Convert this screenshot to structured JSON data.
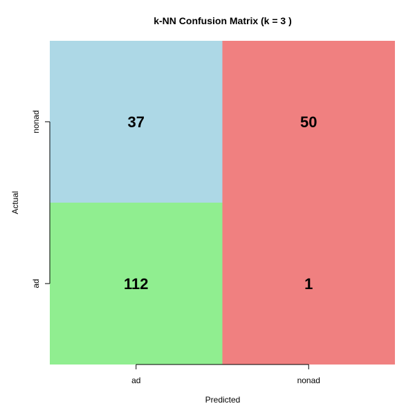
{
  "chart_data": {
    "type": "heatmap",
    "title": "k-NN Confusion Matrix (k = 3 )",
    "xlabel": "Predicted",
    "ylabel": "Actual",
    "x_categories": [
      "ad",
      "nonad"
    ],
    "y_categories": [
      "ad",
      "nonad"
    ],
    "cells": [
      {
        "actual": "nonad",
        "predicted": "ad",
        "value": 37,
        "color": "#add8e6"
      },
      {
        "actual": "nonad",
        "predicted": "nonad",
        "value": 50,
        "color": "#f08080"
      },
      {
        "actual": "ad",
        "predicted": "ad",
        "value": 112,
        "color": "#90ee90"
      },
      {
        "actual": "ad",
        "predicted": "nonad",
        "value": 1,
        "color": "#f08080"
      }
    ],
    "grid": false,
    "legend": "none"
  }
}
